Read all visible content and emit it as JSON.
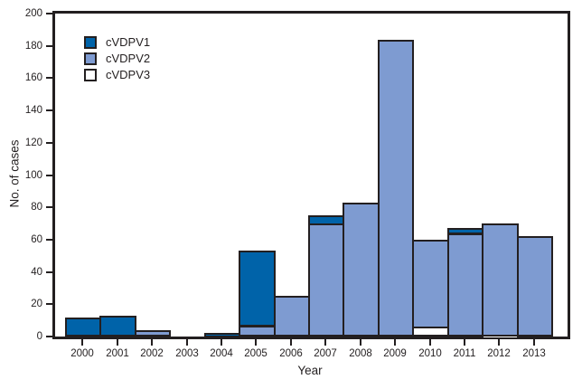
{
  "figure": {
    "background": "#FFFFFF",
    "frame_color": "#231F20",
    "text_color": "#231F20",
    "bar_outline_color": "#231F20"
  },
  "chart_data": {
    "type": "bar",
    "stacked": true,
    "title": "",
    "xlabel": "Year",
    "ylabel": "No. of cases",
    "ylim": [
      0,
      200
    ],
    "yticks": [
      0,
      20,
      40,
      60,
      80,
      100,
      120,
      140,
      160,
      180,
      200
    ],
    "grid": false,
    "legend_position": "upper-left-inside",
    "categories": [
      "2000",
      "2001",
      "2002",
      "2003",
      "2004",
      "2005",
      "2006",
      "2007",
      "2008",
      "2009",
      "2010",
      "2011",
      "2012",
      "2013"
    ],
    "series": [
      {
        "name": "cVDPV1",
        "color": "#0063A9",
        "values": [
          12,
          13,
          0,
          0,
          2,
          46,
          0,
          5,
          0,
          0,
          0,
          3,
          0,
          0
        ]
      },
      {
        "name": "cVDPV2",
        "color": "#7E9BD1",
        "values": [
          0,
          0,
          4,
          0,
          0,
          7,
          25,
          70,
          83,
          184,
          54,
          64,
          69,
          62
        ]
      },
      {
        "name": "cVDPV3",
        "color": "#FFFFFF",
        "values": [
          0,
          0,
          0,
          0,
          0,
          0,
          0,
          0,
          0,
          0,
          6,
          0,
          1,
          0
        ]
      }
    ],
    "stack_order_bottom_to_top": [
      "cVDPV3",
      "cVDPV2",
      "cVDPV1"
    ],
    "totals_by_year": [
      12,
      13,
      4,
      0,
      2,
      53,
      25,
      75,
      83,
      184,
      60,
      67,
      70,
      62
    ]
  }
}
